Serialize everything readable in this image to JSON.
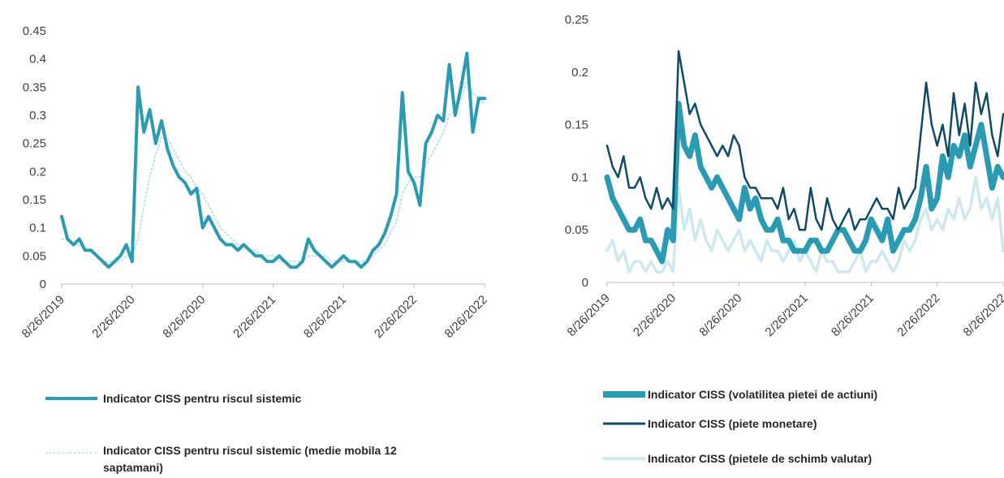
{
  "chart_data": [
    {
      "type": "line",
      "title": "",
      "xlabel": "",
      "ylabel": "",
      "ylim": [
        0,
        0.45
      ],
      "yticks": [
        "0",
        "0.05",
        "0.1",
        "0.15",
        "0.2",
        "0.25",
        "0.3",
        "0.35",
        "0.4",
        "0.45"
      ],
      "xticks": [
        "8/26/2019",
        "2/26/2020",
        "8/26/2020",
        "2/26/2021",
        "8/26/2021",
        "2/26/2022",
        "8/26/2022"
      ],
      "grid": false,
      "legend_position": "bottom",
      "x": [
        0,
        0.5,
        1,
        1.5,
        2,
        2.5,
        3,
        3.5,
        4,
        4.5,
        5,
        5.5,
        6,
        6.5,
        7,
        7.5,
        8,
        8.5,
        9,
        9.5,
        10,
        10.5,
        11,
        11.5,
        12,
        12.5,
        13,
        13.5,
        14,
        14.5,
        15,
        15.5,
        16,
        16.5,
        17,
        17.5,
        18,
        18.5,
        19,
        19.5,
        20,
        20.5,
        21,
        21.5,
        22,
        22.5,
        23,
        23.5,
        24,
        24.5,
        25,
        25.5,
        26,
        26.5,
        27,
        27.5,
        28,
        28.5,
        29,
        29.5,
        30,
        30.5,
        31,
        31.5,
        32,
        32.5,
        33,
        33.5,
        34,
        34.5,
        35,
        35.5,
        36
      ],
      "series": [
        {
          "name": "Indicator CISS pentru riscul sistemic",
          "color": "#2a9bb3",
          "style": "solid-thick",
          "values": [
            0.12,
            0.08,
            0.07,
            0.08,
            0.06,
            0.06,
            0.05,
            0.04,
            0.03,
            0.04,
            0.05,
            0.07,
            0.04,
            0.35,
            0.27,
            0.31,
            0.25,
            0.29,
            0.24,
            0.21,
            0.19,
            0.18,
            0.16,
            0.17,
            0.1,
            0.12,
            0.1,
            0.08,
            0.07,
            0.07,
            0.06,
            0.07,
            0.06,
            0.05,
            0.05,
            0.04,
            0.04,
            0.05,
            0.04,
            0.03,
            0.03,
            0.04,
            0.08,
            0.06,
            0.05,
            0.04,
            0.03,
            0.04,
            0.05,
            0.04,
            0.04,
            0.03,
            0.04,
            0.06,
            0.07,
            0.09,
            0.12,
            0.16,
            0.34,
            0.2,
            0.18,
            0.14,
            0.25,
            0.27,
            0.3,
            0.29,
            0.39,
            0.3,
            0.35,
            0.41,
            0.27,
            0.33,
            0.33
          ]
        },
        {
          "name": "Indicator CISS pentru riscul sistemic (medie mobila 12 saptamani)",
          "color": "#bfe3ea",
          "style": "dotted",
          "values": [
            0.08,
            0.08,
            0.07,
            0.07,
            0.06,
            0.06,
            0.05,
            0.04,
            0.04,
            0.04,
            0.04,
            0.05,
            0.05,
            0.08,
            0.14,
            0.19,
            0.23,
            0.26,
            0.26,
            0.24,
            0.22,
            0.2,
            0.19,
            0.17,
            0.16,
            0.14,
            0.12,
            0.1,
            0.09,
            0.08,
            0.07,
            0.07,
            0.06,
            0.06,
            0.05,
            0.05,
            0.05,
            0.04,
            0.04,
            0.04,
            0.04,
            0.04,
            0.05,
            0.05,
            0.05,
            0.05,
            0.04,
            0.04,
            0.04,
            0.04,
            0.04,
            0.04,
            0.04,
            0.05,
            0.06,
            0.07,
            0.09,
            0.11,
            0.16,
            0.18,
            0.19,
            0.19,
            0.21,
            0.23,
            0.25,
            0.27,
            0.3,
            0.31,
            0.33,
            0.36,
            0.34,
            0.33,
            0.32
          ]
        }
      ]
    },
    {
      "type": "line",
      "title": "",
      "xlabel": "",
      "ylabel": "",
      "ylim": [
        0,
        0.25
      ],
      "yticks": [
        "0",
        "0.05",
        "0.1",
        "0.15",
        "0.2",
        "0.25"
      ],
      "xticks": [
        "8/26/2019",
        "2/26/2020",
        "8/26/2020",
        "2/26/2021",
        "8/26/2021",
        "2/26/2022",
        "8/26/2022"
      ],
      "grid": false,
      "legend_position": "bottom",
      "x": [
        0,
        0.5,
        1,
        1.5,
        2,
        2.5,
        3,
        3.5,
        4,
        4.5,
        5,
        5.5,
        6,
        6.5,
        7,
        7.5,
        8,
        8.5,
        9,
        9.5,
        10,
        10.5,
        11,
        11.5,
        12,
        12.5,
        13,
        13.5,
        14,
        14.5,
        15,
        15.5,
        16,
        16.5,
        17,
        17.5,
        18,
        18.5,
        19,
        19.5,
        20,
        20.5,
        21,
        21.5,
        22,
        22.5,
        23,
        23.5,
        24,
        24.5,
        25,
        25.5,
        26,
        26.5,
        27,
        27.5,
        28,
        28.5,
        29,
        29.5,
        30,
        30.5,
        31,
        31.5,
        32,
        32.5,
        33,
        33.5,
        34,
        34.5,
        35,
        35.5,
        36
      ],
      "series": [
        {
          "name": "Indicator CISS (volatilitea pietei de actiuni)",
          "color": "#2a9bb3",
          "style": "solid-thick",
          "values": [
            0.1,
            0.08,
            0.07,
            0.06,
            0.05,
            0.05,
            0.06,
            0.04,
            0.04,
            0.03,
            0.02,
            0.05,
            0.04,
            0.17,
            0.13,
            0.12,
            0.14,
            0.11,
            0.1,
            0.09,
            0.1,
            0.09,
            0.08,
            0.07,
            0.06,
            0.09,
            0.07,
            0.08,
            0.06,
            0.05,
            0.05,
            0.06,
            0.04,
            0.04,
            0.03,
            0.03,
            0.03,
            0.04,
            0.04,
            0.03,
            0.03,
            0.04,
            0.05,
            0.05,
            0.04,
            0.03,
            0.03,
            0.04,
            0.06,
            0.05,
            0.04,
            0.06,
            0.03,
            0.04,
            0.05,
            0.05,
            0.06,
            0.08,
            0.11,
            0.07,
            0.08,
            0.12,
            0.1,
            0.13,
            0.12,
            0.14,
            0.11,
            0.13,
            0.15,
            0.12,
            0.09,
            0.11,
            0.1
          ]
        },
        {
          "name": "Indicator CISS (piete monetare)",
          "color": "#0f4a66",
          "style": "solid",
          "values": [
            0.13,
            0.11,
            0.1,
            0.12,
            0.09,
            0.09,
            0.1,
            0.08,
            0.07,
            0.09,
            0.07,
            0.08,
            0.07,
            0.22,
            0.19,
            0.16,
            0.17,
            0.15,
            0.14,
            0.13,
            0.12,
            0.13,
            0.12,
            0.14,
            0.13,
            0.1,
            0.09,
            0.09,
            0.08,
            0.08,
            0.08,
            0.07,
            0.09,
            0.06,
            0.07,
            0.05,
            0.05,
            0.09,
            0.06,
            0.05,
            0.08,
            0.06,
            0.05,
            0.06,
            0.07,
            0.05,
            0.06,
            0.06,
            0.07,
            0.08,
            0.07,
            0.07,
            0.06,
            0.09,
            0.07,
            0.08,
            0.09,
            0.14,
            0.19,
            0.15,
            0.13,
            0.15,
            0.12,
            0.18,
            0.14,
            0.17,
            0.13,
            0.19,
            0.16,
            0.18,
            0.14,
            0.12,
            0.16
          ]
        },
        {
          "name": "Indicator CISS (pietele de schimb valutar)",
          "color": "#cde8ef",
          "style": "solid",
          "values": [
            0.03,
            0.04,
            0.02,
            0.03,
            0.01,
            0.02,
            0.02,
            0.01,
            0.02,
            0.01,
            0.01,
            0.02,
            0.01,
            0.09,
            0.05,
            0.07,
            0.04,
            0.06,
            0.04,
            0.03,
            0.05,
            0.04,
            0.03,
            0.04,
            0.05,
            0.03,
            0.04,
            0.03,
            0.02,
            0.04,
            0.03,
            0.03,
            0.02,
            0.03,
            0.04,
            0.02,
            0.03,
            0.02,
            0.01,
            0.03,
            0.02,
            0.02,
            0.01,
            0.01,
            0.01,
            0.02,
            0.03,
            0.01,
            0.02,
            0.02,
            0.03,
            0.02,
            0.01,
            0.02,
            0.04,
            0.03,
            0.04,
            0.06,
            0.07,
            0.05,
            0.06,
            0.05,
            0.07,
            0.06,
            0.08,
            0.06,
            0.07,
            0.1,
            0.07,
            0.08,
            0.06,
            0.08,
            0.03
          ]
        }
      ]
    }
  ]
}
